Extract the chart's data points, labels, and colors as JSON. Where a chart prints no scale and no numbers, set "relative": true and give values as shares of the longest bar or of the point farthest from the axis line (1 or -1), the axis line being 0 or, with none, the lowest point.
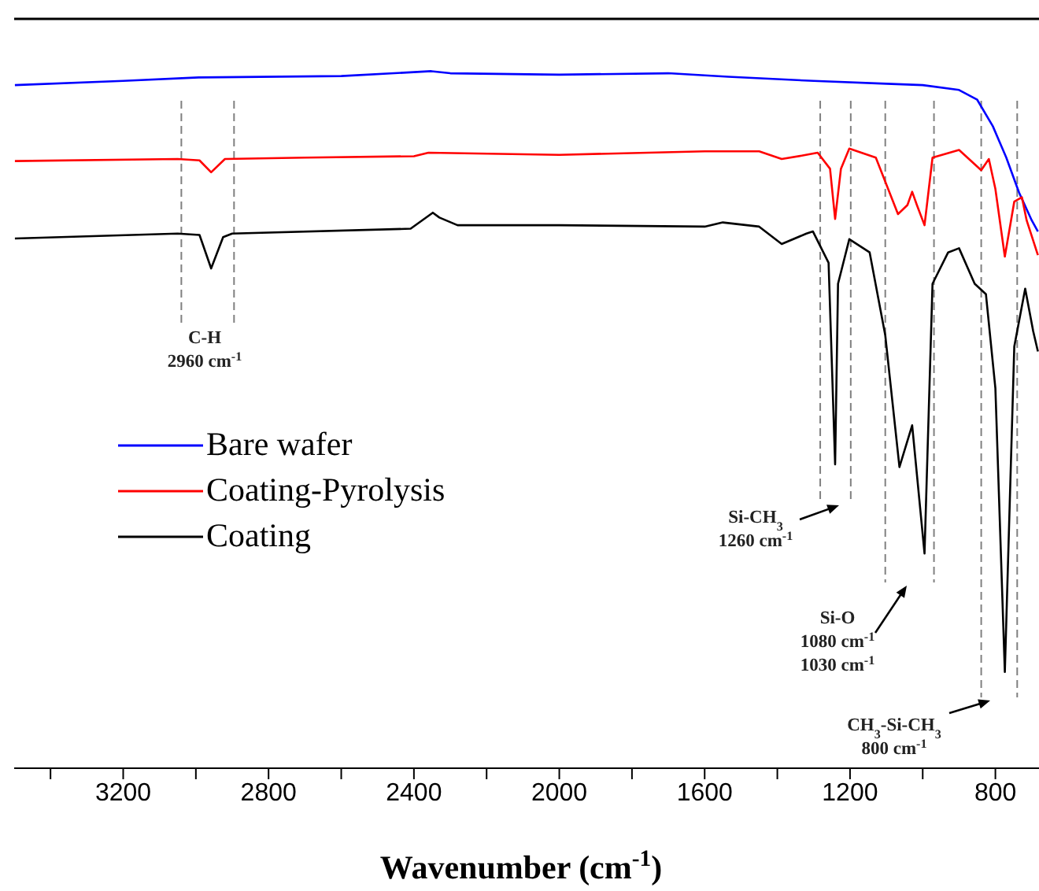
{
  "chart_data": {
    "type": "line",
    "xlabel": "Wavenumber (cm$^{-1}$)",
    "relative": true,
    "xlim": [
      3500,
      680
    ],
    "xticks": [
      {
        "value": 3400,
        "label": null
      },
      3200,
      {
        "value": 3000,
        "label": null
      },
      2800,
      {
        "value": 2600,
        "label": null
      },
      2400,
      {
        "value": 2200,
        "label": null
      },
      2000,
      {
        "value": 1800,
        "label": null
      },
      1600,
      {
        "value": 1400,
        "label": null
      },
      1200,
      {
        "value": 1000,
        "label": null
      },
      800
    ],
    "tick_labels": "x",
    "legend": "left",
    "marker": "none",
    "line_style": "solid",
    "series": [
      {
        "name": "Bare  wafer",
        "color": "#0000ff",
        "x": [
          3498,
          3200,
          2992,
          2600,
          2352,
          2300,
          2000,
          1700,
          1535,
          1300,
          1100,
          1000,
          900,
          850,
          807,
          770,
          735,
          700,
          683
        ],
        "values": [
          0.98,
          0.986,
          0.991,
          0.993,
          1.0,
          0.997,
          0.995,
          0.997,
          0.992,
          0.986,
          0.982,
          0.98,
          0.973,
          0.959,
          0.921,
          0.876,
          0.826,
          0.786,
          0.77
        ]
      },
      {
        "name": "Coating-Pyrolysis",
        "color": "#ff0000",
        "x": [
          3498,
          3050,
          2990,
          2958,
          2920,
          2700,
          2400,
          2360,
          2000,
          1600,
          1450,
          1388,
          1330,
          1289,
          1255,
          1241,
          1225,
          1202,
          1129,
          1068,
          1042,
          1029,
          1016,
          995,
          973,
          900,
          839,
          818,
          800,
          774,
          748,
          727,
          714,
          683
        ],
        "values": [
          0.871,
          0.874,
          0.872,
          0.855,
          0.874,
          0.876,
          0.878,
          0.883,
          0.88,
          0.885,
          0.885,
          0.874,
          0.879,
          0.883,
          0.86,
          0.788,
          0.86,
          0.889,
          0.876,
          0.795,
          0.808,
          0.827,
          0.808,
          0.779,
          0.876,
          0.887,
          0.858,
          0.874,
          0.831,
          0.734,
          0.813,
          0.819,
          0.786,
          0.736
        ]
      },
      {
        "name": "Coating",
        "color": "#000000",
        "x": [
          3498,
          3050,
          2990,
          2958,
          2925,
          2900,
          2409,
          2348,
          2330,
          2280,
          2000,
          1600,
          1550,
          1450,
          1388,
          1320,
          1302,
          1259,
          1241,
          1233,
          1202,
          1146,
          1103,
          1064,
          1029,
          995,
          973,
          930,
          900,
          857,
          826,
          800,
          774,
          748,
          718,
          696,
          683
        ],
        "values": [
          0.76,
          0.767,
          0.765,
          0.717,
          0.762,
          0.767,
          0.774,
          0.797,
          0.79,
          0.779,
          0.779,
          0.777,
          0.783,
          0.777,
          0.752,
          0.767,
          0.77,
          0.725,
          0.436,
          0.695,
          0.759,
          0.74,
          0.621,
          0.432,
          0.492,
          0.308,
          0.695,
          0.74,
          0.746,
          0.695,
          0.68,
          0.545,
          0.138,
          0.605,
          0.688,
          0.627,
          0.598
        ]
      }
    ],
    "ref_lines": [
      {
        "axis": "x",
        "value": 3040,
        "color": "#808080",
        "line_style": "dashed"
      },
      {
        "axis": "x",
        "value": 2895,
        "color": "#808080",
        "line_style": "dashed"
      },
      {
        "axis": "x",
        "value": 1282,
        "color": "#808080",
        "line_style": "dashed"
      },
      {
        "axis": "x",
        "value": 1198,
        "color": "#808080",
        "line_style": "dashed"
      },
      {
        "axis": "x",
        "value": 1103,
        "color": "#808080",
        "line_style": "dashed"
      },
      {
        "axis": "x",
        "value": 969,
        "color": "#808080",
        "line_style": "dashed"
      },
      {
        "axis": "x",
        "value": 839,
        "color": "#808080",
        "line_style": "dashed"
      },
      {
        "axis": "x",
        "value": 740,
        "color": "#808080",
        "line_style": "dashed"
      }
    ],
    "annotations": [
      "C-H\n2960 cm$^{-1}$",
      "Si-CH$_{3}$\n1260 cm$^{-1}$",
      "Si-O\n1080 cm$^{-1}$\n1030 cm$^{-1}$",
      "CH$_{3}$-Si-CH$_{3}$\n800 cm$^{-1}$"
    ]
  }
}
